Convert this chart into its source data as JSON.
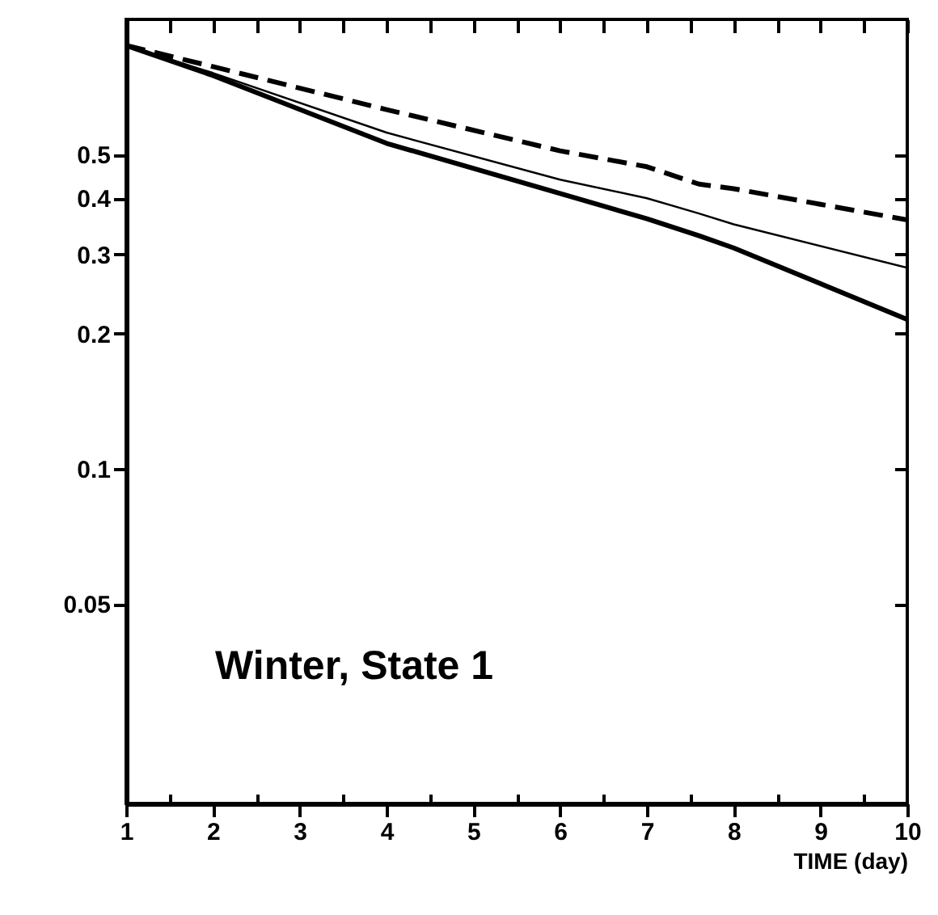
{
  "chart_data": {
    "type": "line",
    "xlabel": "TIME (day)",
    "annotations": [
      "Winter, State 1"
    ],
    "log": "y",
    "grid": false,
    "marker": "none",
    "xlim": [
      1,
      10
    ],
    "ylim": [
      0.018,
      1.0
    ],
    "xticks": [
      1,
      {
        "value": 1.5,
        "label": null
      },
      2,
      {
        "value": 2.5,
        "label": null
      },
      3,
      {
        "value": 3.5,
        "label": null
      },
      4,
      {
        "value": 4.5,
        "label": null
      },
      5,
      {
        "value": 5.5,
        "label": null
      },
      6,
      {
        "value": 6.5,
        "label": null
      },
      7,
      {
        "value": 7.5,
        "label": null
      },
      8,
      {
        "value": 8.5,
        "label": null
      },
      9,
      {
        "value": 9.5,
        "label": null
      },
      10
    ],
    "yticks": [
      0.05,
      0.1,
      0.2,
      0.3,
      0.4,
      0.5
    ],
    "x": [
      1,
      2,
      4,
      6,
      7,
      7.6,
      8,
      10
    ],
    "series": [
      {
        "color": "#000000",
        "line_style": "dashed",
        "values": [
          0.875,
          0.785,
          0.63,
          0.51,
          0.47,
          0.43,
          0.42,
          0.358
        ]
      },
      {
        "color": "#000000",
        "line_style": "solid",
        "values": [
          0.875,
          0.76,
          0.56,
          0.44,
          0.4,
          0.37,
          0.35,
          0.28
        ]
      },
      {
        "color": "#000000",
        "line_style": "solid",
        "values": [
          0.875,
          0.75,
          0.53,
          0.41,
          0.36,
          0.33,
          0.31,
          0.215
        ]
      }
    ]
  }
}
